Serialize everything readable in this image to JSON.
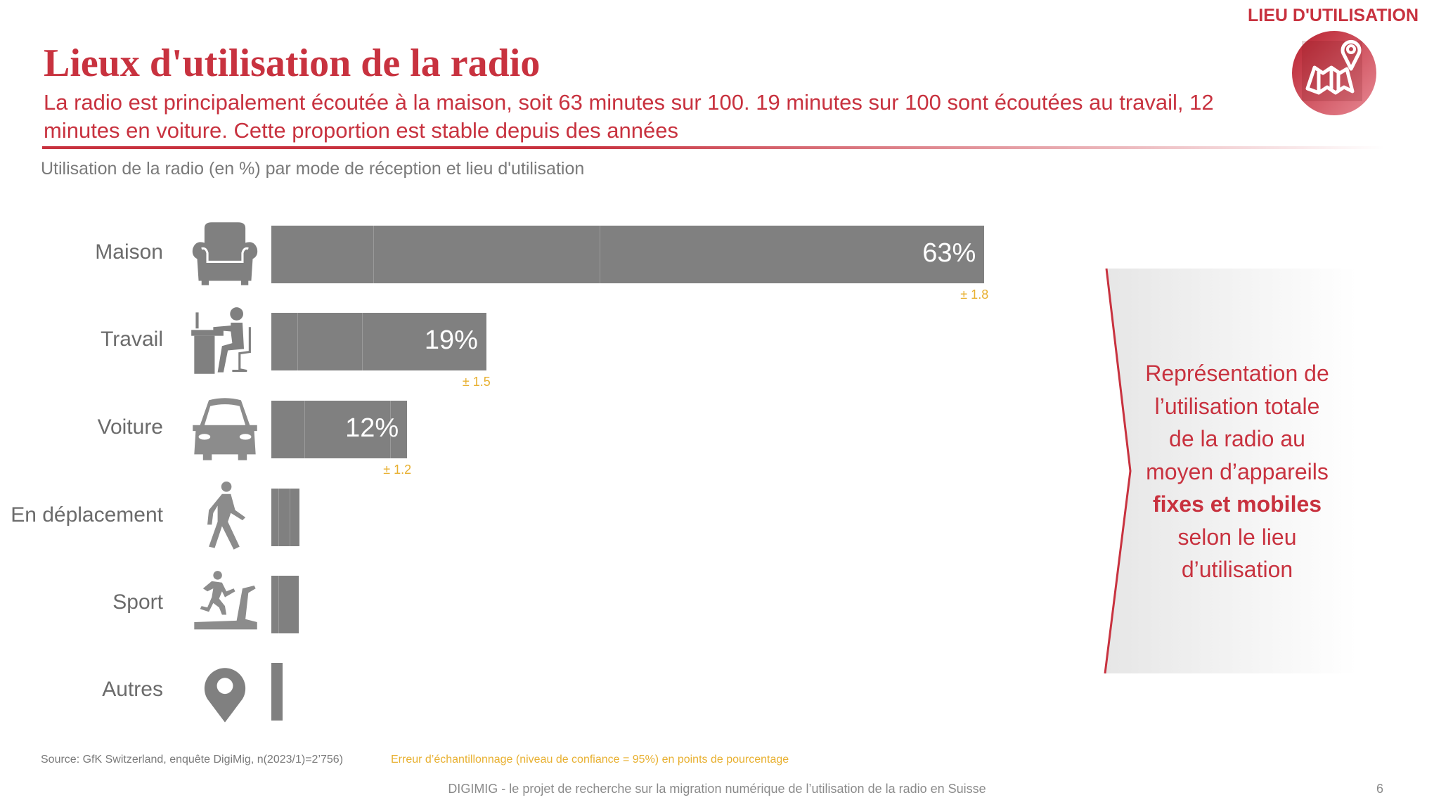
{
  "header": {
    "section_tag": "LIEU D'UTILISATION",
    "section_icon": "map-pin-icon",
    "title": "Lieux d'utilisation de la radio",
    "lead": "La radio est principalement écoutée à la maison, soit 63 minutes sur 100. 19 minutes sur 100 sont écoutées au travail, 12 minutes en voiture. Cette proportion est stable depuis des années"
  },
  "colors": {
    "accent": "#c8323f",
    "bar": "#808080",
    "bar_divider": "#9a9a9a",
    "margin_of_error": "#e8b030",
    "icon": "#808080"
  },
  "chart_data": {
    "type": "bar",
    "orientation": "horizontal",
    "title": "Utilisation de la radio (en %) par mode de réception et lieu d'utilisation",
    "xlabel": "",
    "ylabel": "",
    "xlim": [
      0,
      100
    ],
    "grid": false,
    "categories": [
      "Maison",
      "Travail",
      "Voiture",
      "En déplacement",
      "Sport",
      "Autres"
    ],
    "icons": [
      "armchair-icon",
      "desk-worker-icon",
      "car-icon",
      "walking-person-icon",
      "treadmill-icon",
      "location-pin-icon"
    ],
    "values": [
      63,
      19,
      12,
      2.5,
      2.4,
      1
    ],
    "value_labels": [
      "63%",
      "19%",
      "12%",
      "",
      "",
      ""
    ],
    "margin_of_error_labels": [
      "± 1.8",
      "± 1.5",
      "± 1.2",
      "",
      "",
      ""
    ],
    "segment_dividers": [
      [
        9,
        29
      ],
      [
        2.3,
        8
      ],
      [
        2.9,
        10.5
      ],
      [
        0.6,
        1.6
      ],
      [
        0.6
      ],
      []
    ]
  },
  "callout": {
    "lines": [
      "Représentation de",
      "l’utilisation totale",
      "de la radio au",
      "moyen d’appareils"
    ],
    "emphasis": "fixes et mobiles",
    "tail_lines": [
      "selon le lieu",
      "d’utilisation"
    ]
  },
  "footer": {
    "source": "Source: GfK Switzerland, enquête DigiMig, n(2023/1)=2’756)",
    "error_note": "Erreur d’échantillonnage (niveau de confiance = 95%) en points de pourcentage",
    "project": "DIGIMIG - le projet de recherche sur la migration numérique de l’utilisation de la radio en Suisse",
    "page_number": "6"
  }
}
